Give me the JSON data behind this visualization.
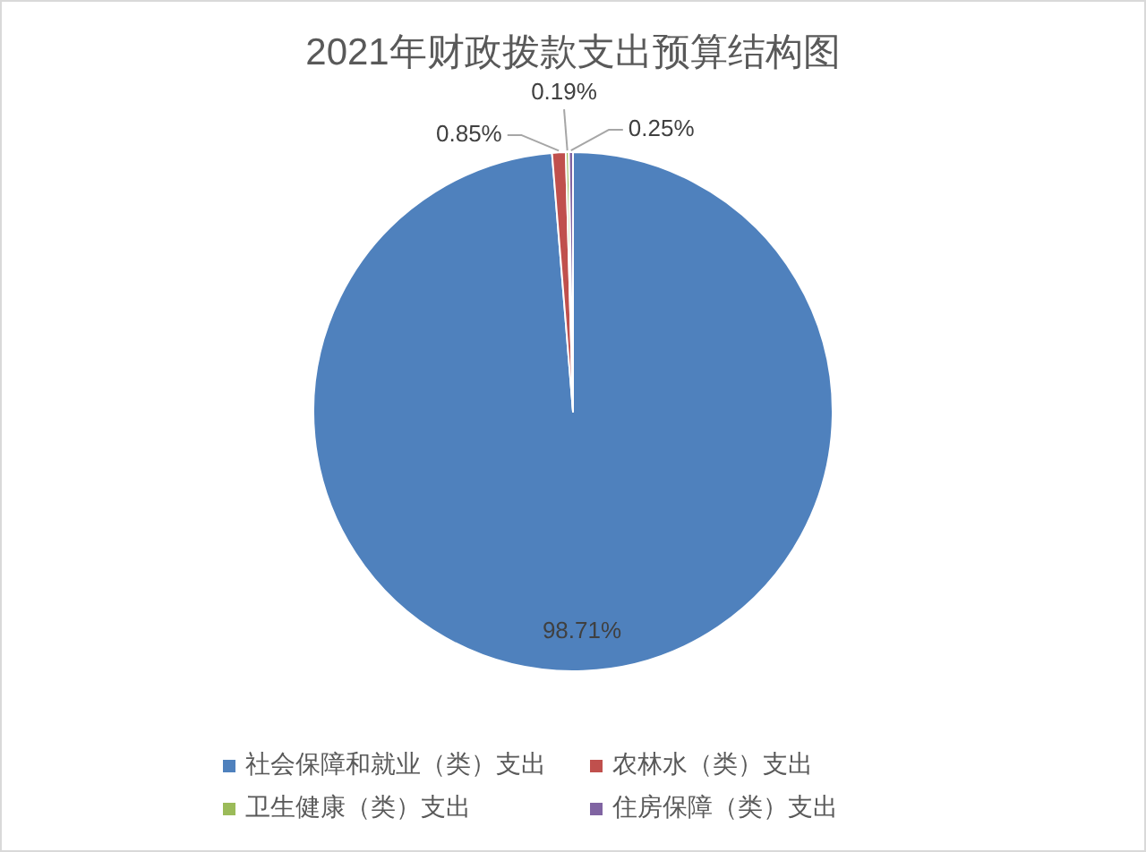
{
  "chart_data": {
    "type": "pie",
    "title": "2021年财政拨款支出预算结构图",
    "categories": [
      "社会保障和就业（类）支出",
      "农林水（类）支出",
      "卫生健康（类）支出",
      "住房保障（类）支出"
    ],
    "values": [
      98.71,
      0.85,
      0.19,
      0.25
    ],
    "colors": [
      "#4f81bd",
      "#c0504d",
      "#9bbb59",
      "#8064a2"
    ],
    "value_labels": [
      "98.71%",
      "0.85%",
      "0.19%",
      "0.25%"
    ],
    "legend": "bottom"
  }
}
